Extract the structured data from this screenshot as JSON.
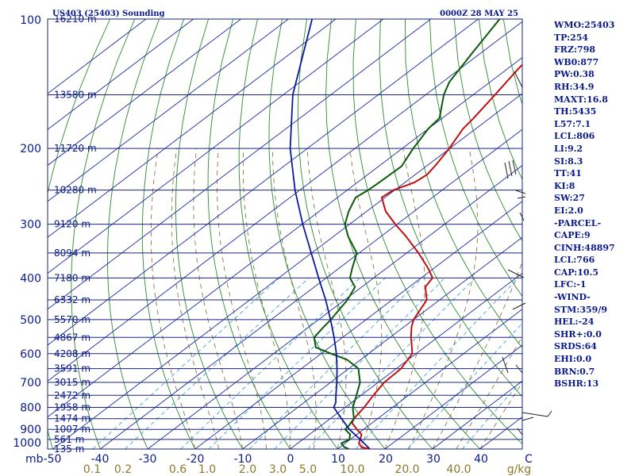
{
  "header": {
    "station": "US403 (25403) Sounding",
    "time": "0000Z 28 MAY 25"
  },
  "indices": [
    "WMO:25403",
    "TP:254",
    "FRZ:798",
    "WB0:877",
    "PW:0.38",
    "RH:34.9",
    "MAXT:16.8",
    "TH:5435",
    "L57:7.1",
    "LCL:806",
    "LI:9.2",
    "SI:8.3",
    "TT:41",
    "KI:8",
    "SW:27",
    "EI:2.0",
    "-PARCEL-",
    "CAPE:9",
    "CINH:48897",
    "LCL:766",
    "CAP:10.5",
    "LFC:-1",
    "-WIND-",
    "STM:359/9",
    "HEL:-24",
    "SHR+:0.0",
    "SRDS:64",
    "EHI:0.0",
    "BRN:0.7",
    "BSHR:13"
  ],
  "colors": {
    "isobar": "#1a237e",
    "isotherm": "#1a2aa0",
    "dry_adiabat": "#2e8b2e",
    "moist_adiabat": "#7a6a2a",
    "mixing_ratio": "#2a9ad0",
    "temperature": "#c01010",
    "dewpoint": "#0a5a0a",
    "parcel": "#0a1a9a"
  },
  "chart_data": {
    "type": "line",
    "title": "US403 (25403) Sounding",
    "subtitle": "0000Z 28 MAY 25",
    "xlabel": "",
    "ylabel": "mb",
    "diagram": "skew-T log-p",
    "xlim": [
      -50,
      50
    ],
    "ylim": [
      1000,
      100
    ],
    "pressure_labels": [
      "100",
      "200",
      "300",
      "400",
      "500",
      "600",
      "700",
      "800",
      "900",
      "1000"
    ],
    "temperature_ticks": [
      "-50",
      "-40",
      "-30",
      "-20",
      "-10",
      "0",
      "10",
      "20",
      "30",
      "40",
      "C"
    ],
    "mixing_ratio_labels": [
      "0.1",
      "0.2",
      "0.6",
      "1.0",
      "2.0",
      "3.0",
      "5.0",
      "10.0",
      "20.0",
      "40.0",
      "g/kg"
    ],
    "height_levels": [
      {
        "p": 100,
        "label": "16210 m"
      },
      {
        "p": 150,
        "label": "13580 m"
      },
      {
        "p": 200,
        "label": "11720 m"
      },
      {
        "p": 250,
        "label": "10280 m"
      },
      {
        "p": 300,
        "label": "9120 m"
      },
      {
        "p": 350,
        "label": "8094 m"
      },
      {
        "p": 400,
        "label": "7180 m"
      },
      {
        "p": 450,
        "label": "6332 m"
      },
      {
        "p": 500,
        "label": "5570 m"
      },
      {
        "p": 550,
        "label": "4867 m"
      },
      {
        "p": 600,
        "label": "4208 m"
      },
      {
        "p": 650,
        "label": "3591 m"
      },
      {
        "p": 700,
        "label": "3015 m"
      },
      {
        "p": 750,
        "label": "2472 m"
      },
      {
        "p": 800,
        "label": "1958 m"
      },
      {
        "p": 850,
        "label": "1474 m"
      },
      {
        "p": 900,
        "label": "1007 m"
      },
      {
        "p": 950,
        "label": "561 m"
      },
      {
        "p": 1000,
        "label": "135 m"
      }
    ],
    "series": [
      {
        "key": "temperature",
        "points": [
          [
            1000,
            16.8
          ],
          [
            990,
            14.5
          ],
          [
            970,
            12.9
          ],
          [
            950,
            12.1
          ],
          [
            925,
            11.0
          ],
          [
            900,
            8.6
          ],
          [
            870,
            5.8
          ],
          [
            850,
            5.0
          ],
          [
            800,
            4.0
          ],
          [
            750,
            2.6
          ],
          [
            700,
            1.3
          ],
          [
            650,
            1.0
          ],
          [
            600,
            -0.8
          ],
          [
            570,
            -3.6
          ],
          [
            550,
            -5.6
          ],
          [
            520,
            -8.4
          ],
          [
            500,
            -10.0
          ],
          [
            450,
            -12.7
          ],
          [
            420,
            -16.6
          ],
          [
            400,
            -17.6
          ],
          [
            380,
            -21.2
          ],
          [
            350,
            -27.5
          ],
          [
            320,
            -34.8
          ],
          [
            300,
            -40.4
          ],
          [
            280,
            -46.0
          ],
          [
            260,
            -50.7
          ],
          [
            250,
            -50.3
          ],
          [
            240,
            -48.0
          ],
          [
            230,
            -47.5
          ],
          [
            220,
            -48.2
          ],
          [
            200,
            -50.1
          ],
          [
            180,
            -52.7
          ],
          [
            170,
            -53.4
          ],
          [
            150,
            -55.4
          ],
          [
            130,
            -57.8
          ],
          [
            110,
            -59.8
          ],
          [
            100,
            -60.8
          ]
        ]
      },
      {
        "key": "dewpoint",
        "points": [
          [
            1000,
            12.4
          ],
          [
            990,
            10.9
          ],
          [
            970,
            9.2
          ],
          [
            950,
            9.8
          ],
          [
            925,
            8.6
          ],
          [
            900,
            6.1
          ],
          [
            880,
            5.8
          ],
          [
            850,
            5.0
          ],
          [
            800,
            1.6
          ],
          [
            770,
            0.1
          ],
          [
            700,
            -3.8
          ],
          [
            650,
            -8.0
          ],
          [
            620,
            -12.8
          ],
          [
            600,
            -17.9
          ],
          [
            580,
            -22.9
          ],
          [
            550,
            -26.0
          ],
          [
            520,
            -26.9
          ],
          [
            500,
            -27.4
          ],
          [
            480,
            -28.2
          ],
          [
            450,
            -29.4
          ],
          [
            420,
            -31.4
          ],
          [
            400,
            -35.0
          ],
          [
            380,
            -37.2
          ],
          [
            350,
            -40.5
          ],
          [
            320,
            -47.0
          ],
          [
            300,
            -51.0
          ],
          [
            280,
            -53.8
          ],
          [
            260,
            -56.2
          ],
          [
            250,
            -55.6
          ],
          [
            240,
            -55.4
          ],
          [
            220,
            -55.2
          ],
          [
            200,
            -57.7
          ],
          [
            180,
            -60.0
          ],
          [
            170,
            -60.6
          ],
          [
            150,
            -66.2
          ],
          [
            140,
            -68.6
          ],
          [
            120,
            -71.8
          ],
          [
            100,
            -75.5
          ]
        ]
      },
      {
        "key": "parcel",
        "points": [
          [
            1000,
            16.8
          ],
          [
            950,
            12.1
          ],
          [
            900,
            7.0
          ],
          [
            850,
            2.4
          ],
          [
            800,
            -2.4
          ],
          [
            780,
            -3.3
          ],
          [
            750,
            -5.3
          ],
          [
            700,
            -8.7
          ],
          [
            650,
            -12.5
          ],
          [
            600,
            -16.8
          ],
          [
            550,
            -21.8
          ],
          [
            500,
            -27.5
          ],
          [
            450,
            -34.0
          ],
          [
            400,
            -41.6
          ],
          [
            350,
            -50.1
          ],
          [
            300,
            -59.9
          ],
          [
            250,
            -71.0
          ],
          [
            200,
            -83.6
          ],
          [
            150,
            -98.0
          ],
          [
            100,
            -115.0
          ]
        ]
      }
    ],
    "grid": true
  }
}
